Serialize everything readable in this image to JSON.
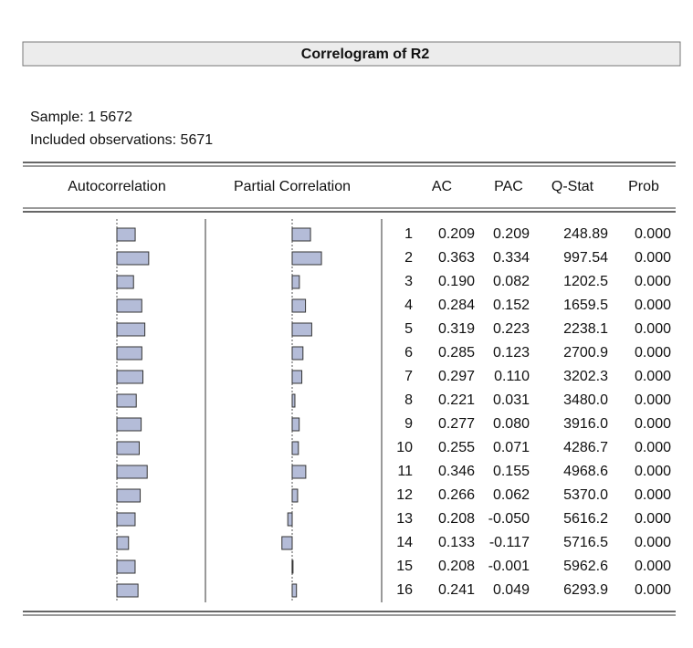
{
  "header": {
    "title": "Correlogram of R2"
  },
  "info": {
    "sample": "Sample: 1 5672",
    "observations": "Included observations: 5671"
  },
  "table": {
    "columns": [
      "Autocorrelation",
      "Partial Correlation",
      "AC",
      "PAC",
      "Q-Stat",
      "Prob"
    ],
    "rows": [
      {
        "lag": 1,
        "ac": {
          "value": 0.209,
          "label": "0.209"
        },
        "pac": {
          "value": 0.209,
          "label": "0.209"
        },
        "qstat": "248.89",
        "prob": "0.000"
      },
      {
        "lag": 2,
        "ac": {
          "value": 0.363,
          "label": "0.363"
        },
        "pac": {
          "value": 0.334,
          "label": "0.334"
        },
        "qstat": "997.54",
        "prob": "0.000"
      },
      {
        "lag": 3,
        "ac": {
          "value": 0.19,
          "label": "0.190"
        },
        "pac": {
          "value": 0.082,
          "label": "0.082"
        },
        "qstat": "1202.5",
        "prob": "0.000"
      },
      {
        "lag": 4,
        "ac": {
          "value": 0.284,
          "label": "0.284"
        },
        "pac": {
          "value": 0.152,
          "label": "0.152"
        },
        "qstat": "1659.5",
        "prob": "0.000"
      },
      {
        "lag": 5,
        "ac": {
          "value": 0.319,
          "label": "0.319"
        },
        "pac": {
          "value": 0.223,
          "label": "0.223"
        },
        "qstat": "2238.1",
        "prob": "0.000"
      },
      {
        "lag": 6,
        "ac": {
          "value": 0.285,
          "label": "0.285"
        },
        "pac": {
          "value": 0.123,
          "label": "0.123"
        },
        "qstat": "2700.9",
        "prob": "0.000"
      },
      {
        "lag": 7,
        "ac": {
          "value": 0.297,
          "label": "0.297"
        },
        "pac": {
          "value": 0.11,
          "label": "0.110"
        },
        "qstat": "3202.3",
        "prob": "0.000"
      },
      {
        "lag": 8,
        "ac": {
          "value": 0.221,
          "label": "0.221"
        },
        "pac": {
          "value": 0.031,
          "label": "0.031"
        },
        "qstat": "3480.0",
        "prob": "0.000"
      },
      {
        "lag": 9,
        "ac": {
          "value": 0.277,
          "label": "0.277"
        },
        "pac": {
          "value": 0.08,
          "label": "0.080"
        },
        "qstat": "3916.0",
        "prob": "0.000"
      },
      {
        "lag": 10,
        "ac": {
          "value": 0.255,
          "label": "0.255"
        },
        "pac": {
          "value": 0.071,
          "label": "0.071"
        },
        "qstat": "4286.7",
        "prob": "0.000"
      },
      {
        "lag": 11,
        "ac": {
          "value": 0.346,
          "label": "0.346"
        },
        "pac": {
          "value": 0.155,
          "label": "0.155"
        },
        "qstat": "4968.6",
        "prob": "0.000"
      },
      {
        "lag": 12,
        "ac": {
          "value": 0.266,
          "label": "0.266"
        },
        "pac": {
          "value": 0.062,
          "label": "0.062"
        },
        "qstat": "5370.0",
        "prob": "0.000"
      },
      {
        "lag": 13,
        "ac": {
          "value": 0.208,
          "label": "0.208"
        },
        "pac": {
          "value": -0.05,
          "label": "-0.050"
        },
        "qstat": "5616.2",
        "prob": "0.000"
      },
      {
        "lag": 14,
        "ac": {
          "value": 0.133,
          "label": "0.133"
        },
        "pac": {
          "value": -0.117,
          "label": "-0.117"
        },
        "qstat": "5716.5",
        "prob": "0.000"
      },
      {
        "lag": 15,
        "ac": {
          "value": 0.208,
          "label": "0.208"
        },
        "pac": {
          "value": -0.001,
          "label": "-0.001"
        },
        "qstat": "5962.6",
        "prob": "0.000"
      },
      {
        "lag": 16,
        "ac": {
          "value": 0.241,
          "label": "0.241"
        },
        "pac": {
          "value": 0.049,
          "label": "0.049"
        },
        "qstat": "6293.9",
        "prob": "0.000"
      }
    ]
  }
}
